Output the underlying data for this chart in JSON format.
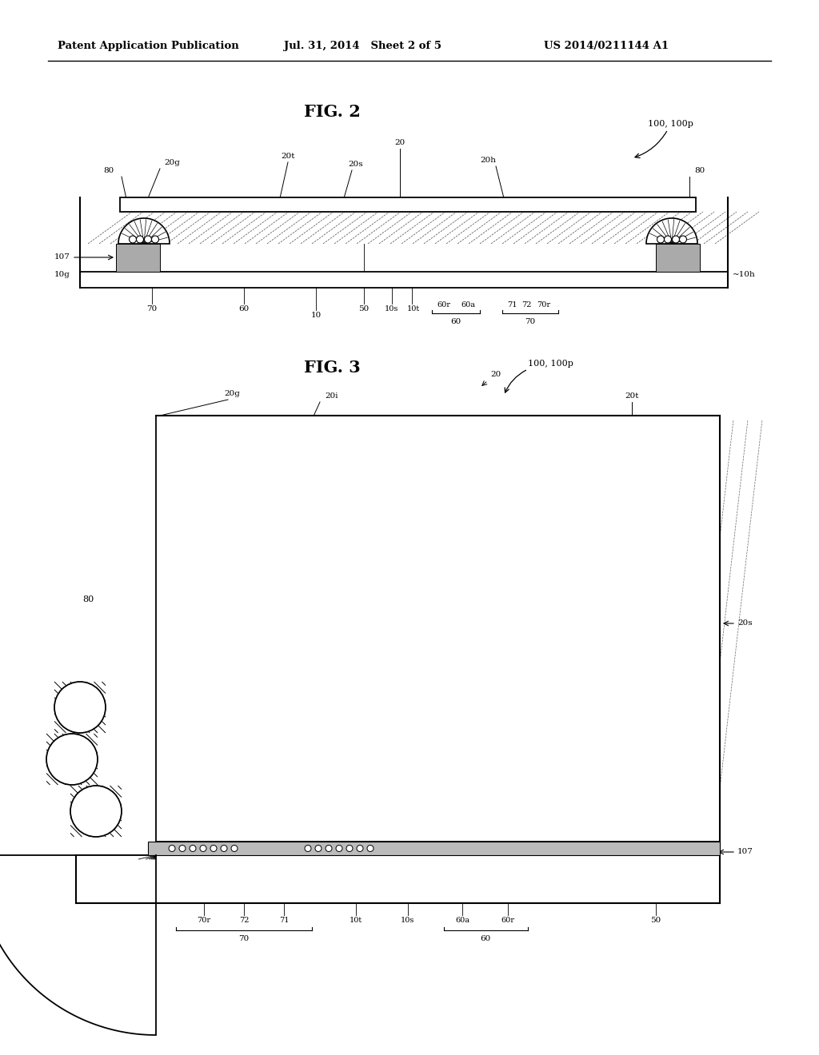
{
  "header_left": "Patent Application Publication",
  "header_center": "Jul. 31, 2014   Sheet 2 of 5",
  "header_right": "US 2014/0211144 A1",
  "fig2_title": "FIG. 2",
  "fig3_title": "FIG. 3",
  "bg_color": "#ffffff",
  "line_color": "#000000"
}
